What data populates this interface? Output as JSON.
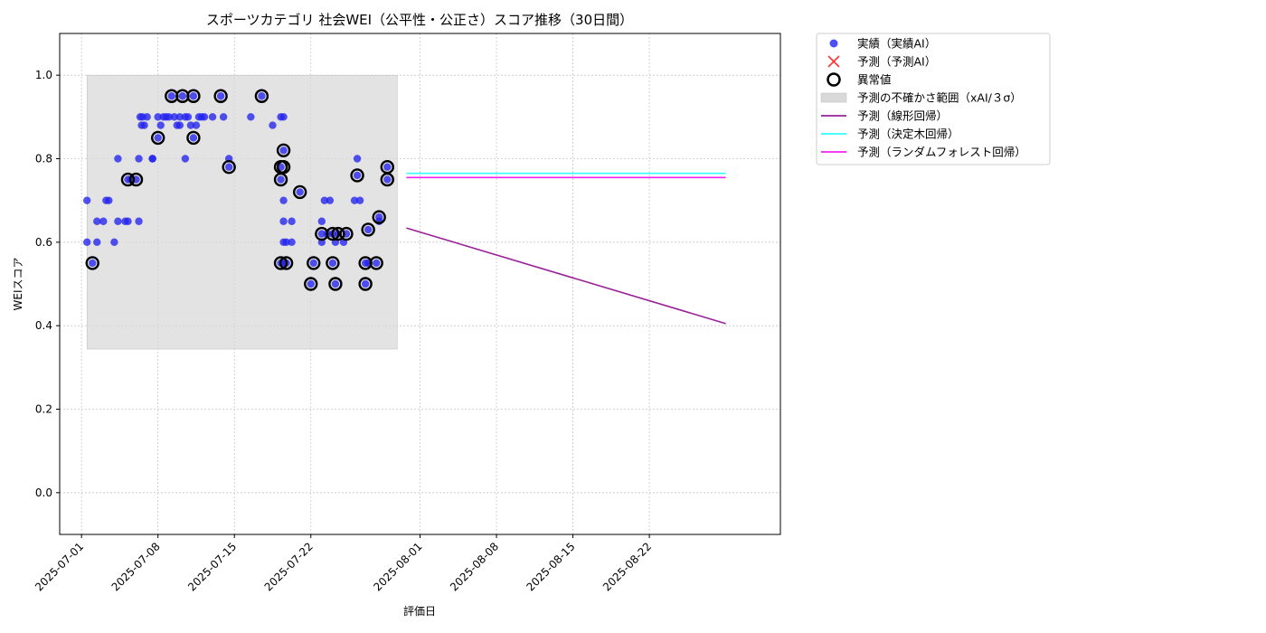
{
  "chart_data": {
    "type": "scatter",
    "title": "スポーツカテゴリ 社会WEI（公平性・公正さ）スコア推移（30日間）",
    "xlabel": "評価日",
    "ylabel": "WEIスコア",
    "xlim": [
      "2025-06-29",
      "2025-09-03"
    ],
    "ylim": [
      -0.1,
      1.1
    ],
    "y_ticks": [
      "0.0",
      "0.2",
      "0.4",
      "0.6",
      "0.8",
      "1.0"
    ],
    "x_ticks": [
      "2025-07-01",
      "2025-07-08",
      "2025-07-15",
      "2025-07-22",
      "2025-08-01",
      "2025-08-08",
      "2025-08-15",
      "2025-08-22"
    ],
    "grid": true,
    "legend_position": "outside-top-right",
    "uncertainty_band": {
      "x_start": "2025-07-01 12:00",
      "x_end": "2025-07-29 22:00",
      "y_low": 0.344,
      "y_high": 1.0
    },
    "series": [
      {
        "name": "実績（実績AI）",
        "kind": "scatter",
        "color": "#2222ee",
        "points": [
          [
            "2025-07-01 12:00",
            0.7
          ],
          [
            "2025-07-01 12:00",
            0.6
          ],
          [
            "2025-07-02 00:00",
            0.55
          ],
          [
            "2025-07-02 10:00",
            0.6
          ],
          [
            "2025-07-02 10:00",
            0.65
          ],
          [
            "2025-07-03 00:00",
            0.65
          ],
          [
            "2025-07-03 06:00",
            0.7
          ],
          [
            "2025-07-03 12:00",
            0.7
          ],
          [
            "2025-07-04 00:00",
            0.6
          ],
          [
            "2025-07-04 08:00",
            0.65
          ],
          [
            "2025-07-04 08:00",
            0.8
          ],
          [
            "2025-07-05 00:00",
            0.65
          ],
          [
            "2025-07-05 06:00",
            0.65
          ],
          [
            "2025-07-05 06:00",
            0.75
          ],
          [
            "2025-07-05 12:00",
            0.75
          ],
          [
            "2025-07-06 00:00",
            0.75
          ],
          [
            "2025-07-06 06:00",
            0.8
          ],
          [
            "2025-07-06 06:00",
            0.65
          ],
          [
            "2025-07-06 09:00",
            0.9
          ],
          [
            "2025-07-06 12:00",
            0.88
          ],
          [
            "2025-07-06 14:00",
            0.9
          ],
          [
            "2025-07-06 18:00",
            0.88
          ],
          [
            "2025-07-07 00:00",
            0.9
          ],
          [
            "2025-07-07 12:00",
            0.8
          ],
          [
            "2025-07-07 12:00",
            0.8
          ],
          [
            "2025-07-08 00:00",
            0.9
          ],
          [
            "2025-07-08 00:00",
            0.85
          ],
          [
            "2025-07-08 06:00",
            0.88
          ],
          [
            "2025-07-08 12:00",
            0.9
          ],
          [
            "2025-07-08 18:00",
            0.9
          ],
          [
            "2025-07-09 00:00",
            0.9
          ],
          [
            "2025-07-09 06:00",
            0.95
          ],
          [
            "2025-07-09 12:00",
            0.9
          ],
          [
            "2025-07-09 18:00",
            0.88
          ],
          [
            "2025-07-10 00:00",
            0.88
          ],
          [
            "2025-07-10 00:00",
            0.9
          ],
          [
            "2025-07-10 06:00",
            0.95
          ],
          [
            "2025-07-10 12:00",
            0.9
          ],
          [
            "2025-07-10 12:00",
            0.8
          ],
          [
            "2025-07-10 18:00",
            0.9
          ],
          [
            "2025-07-11 00:00",
            0.88
          ],
          [
            "2025-07-11 06:00",
            0.95
          ],
          [
            "2025-07-11 06:00",
            0.85
          ],
          [
            "2025-07-11 12:00",
            0.88
          ],
          [
            "2025-07-11 18:00",
            0.9
          ],
          [
            "2025-07-12 00:00",
            0.9
          ],
          [
            "2025-07-12 06:00",
            0.9
          ],
          [
            "2025-07-13 00:00",
            0.9
          ],
          [
            "2025-07-13 18:00",
            0.95
          ],
          [
            "2025-07-14 00:00",
            0.9
          ],
          [
            "2025-07-14 12:00",
            0.78
          ],
          [
            "2025-07-14 12:00",
            0.8
          ],
          [
            "2025-07-16 12:00",
            0.9
          ],
          [
            "2025-07-17 12:00",
            0.95
          ],
          [
            "2025-07-18 12:00",
            0.88
          ],
          [
            "2025-07-19 06:00",
            0.9
          ],
          [
            "2025-07-19 06:00",
            0.78
          ],
          [
            "2025-07-19 06:00",
            0.75
          ],
          [
            "2025-07-19 06:00",
            0.55
          ],
          [
            "2025-07-19 12:00",
            0.9
          ],
          [
            "2025-07-19 12:00",
            0.82
          ],
          [
            "2025-07-19 12:00",
            0.7
          ],
          [
            "2025-07-19 12:00",
            0.65
          ],
          [
            "2025-07-19 12:00",
            0.6
          ],
          [
            "2025-07-19 12:00",
            0.55
          ],
          [
            "2025-07-19 18:00",
            0.6
          ],
          [
            "2025-07-19 18:00",
            0.55
          ],
          [
            "2025-07-20 06:00",
            0.65
          ],
          [
            "2025-07-20 06:00",
            0.6
          ],
          [
            "2025-07-21 00:00",
            0.72
          ],
          [
            "2025-07-22 00:00",
            0.5
          ],
          [
            "2025-07-22 06:00",
            0.55
          ],
          [
            "2025-07-23 00:00",
            0.62
          ],
          [
            "2025-07-23 00:00",
            0.6
          ],
          [
            "2025-07-23 00:00",
            0.65
          ],
          [
            "2025-07-23 06:00",
            0.7
          ],
          [
            "2025-07-23 12:00",
            0.62
          ],
          [
            "2025-07-23 18:00",
            0.7
          ],
          [
            "2025-07-24 00:00",
            0.62
          ],
          [
            "2025-07-24 00:00",
            0.55
          ],
          [
            "2025-07-24 06:00",
            0.5
          ],
          [
            "2025-07-24 06:00",
            0.6
          ],
          [
            "2025-07-24 12:00",
            0.62
          ],
          [
            "2025-07-25 00:00",
            0.6
          ],
          [
            "2025-07-25 06:00",
            0.62
          ],
          [
            "2025-07-26 00:00",
            0.7
          ],
          [
            "2025-07-26 06:00",
            0.8
          ],
          [
            "2025-07-26 06:00",
            0.76
          ],
          [
            "2025-07-26 12:00",
            0.7
          ],
          [
            "2025-07-27 00:00",
            0.5
          ],
          [
            "2025-07-27 00:00",
            0.55
          ],
          [
            "2025-07-27 06:00",
            0.63
          ],
          [
            "2025-07-27 06:00",
            0.55
          ],
          [
            "2025-07-28 00:00",
            0.55
          ],
          [
            "2025-07-28 06:00",
            0.66
          ],
          [
            "2025-07-28 06:00",
            0.65
          ],
          [
            "2025-07-29 00:00",
            0.75
          ],
          [
            "2025-07-29 00:00",
            0.78
          ]
        ]
      },
      {
        "name": "予測（予測AI）",
        "kind": "marker-x",
        "color": "#ff3333",
        "points": []
      },
      {
        "name": "異常値",
        "kind": "ring",
        "color": "#000000",
        "points": [
          [
            "2025-07-02 00:00",
            0.55
          ],
          [
            "2025-07-05 06:00",
            0.75
          ],
          [
            "2025-07-06 00:00",
            0.75
          ],
          [
            "2025-07-08 00:00",
            0.85
          ],
          [
            "2025-07-09 06:00",
            0.95
          ],
          [
            "2025-07-10 06:00",
            0.95
          ],
          [
            "2025-07-11 06:00",
            0.95
          ],
          [
            "2025-07-11 06:00",
            0.85
          ],
          [
            "2025-07-13 18:00",
            0.95
          ],
          [
            "2025-07-14 12:00",
            0.78
          ],
          [
            "2025-07-17 12:00",
            0.95
          ],
          [
            "2025-07-19 06:00",
            0.78
          ],
          [
            "2025-07-19 06:00",
            0.75
          ],
          [
            "2025-07-19 06:00",
            0.55
          ],
          [
            "2025-07-19 12:00",
            0.82
          ],
          [
            "2025-07-19 12:00",
            0.78
          ],
          [
            "2025-07-19 18:00",
            0.55
          ],
          [
            "2025-07-21 00:00",
            0.72
          ],
          [
            "2025-07-22 00:00",
            0.5
          ],
          [
            "2025-07-22 06:00",
            0.55
          ],
          [
            "2025-07-23 00:00",
            0.62
          ],
          [
            "2025-07-24 00:00",
            0.62
          ],
          [
            "2025-07-24 00:00",
            0.55
          ],
          [
            "2025-07-24 06:00",
            0.5
          ],
          [
            "2025-07-24 12:00",
            0.62
          ],
          [
            "2025-07-25 06:00",
            0.62
          ],
          [
            "2025-07-26 06:00",
            0.76
          ],
          [
            "2025-07-27 00:00",
            0.5
          ],
          [
            "2025-07-27 00:00",
            0.55
          ],
          [
            "2025-07-27 06:00",
            0.63
          ],
          [
            "2025-07-28 00:00",
            0.55
          ],
          [
            "2025-07-28 06:00",
            0.66
          ],
          [
            "2025-07-29 00:00",
            0.75
          ],
          [
            "2025-07-29 00:00",
            0.78
          ]
        ]
      },
      {
        "name": "予測（線形回帰）",
        "kind": "line",
        "color": "#992299",
        "points": [
          [
            "2025-07-30 18:00",
            0.634
          ],
          [
            "2025-08-29 00:00",
            0.405
          ]
        ]
      },
      {
        "name": "予測（決定木回帰）",
        "kind": "line",
        "color": "#33ffff",
        "points": [
          [
            "2025-07-30 18:00",
            0.765
          ],
          [
            "2025-08-29 00:00",
            0.765
          ]
        ]
      },
      {
        "name": "予測（ランダムフォレスト回帰）",
        "kind": "line",
        "color": "#ee22ee",
        "points": [
          [
            "2025-07-30 18:00",
            0.755
          ],
          [
            "2025-08-29 00:00",
            0.755
          ]
        ]
      }
    ],
    "legend": [
      {
        "label": "実績（実績AI）",
        "marker": "dot",
        "color": "#2222ee"
      },
      {
        "label": "予測（予測AI）",
        "marker": "x",
        "color": "#ff3333"
      },
      {
        "label": "異常値",
        "marker": "ring",
        "color": "#000000"
      },
      {
        "label": "予測の不確かさ範囲（xAI/３σ）",
        "marker": "band",
        "color": "#d9d9d9"
      },
      {
        "label": "予測（線形回帰）",
        "marker": "line",
        "color": "#992299"
      },
      {
        "label": "予測（決定木回帰）",
        "marker": "line",
        "color": "#33ffff"
      },
      {
        "label": "予測（ランダムフォレスト回帰）",
        "marker": "line",
        "color": "#ee22ee"
      }
    ]
  }
}
